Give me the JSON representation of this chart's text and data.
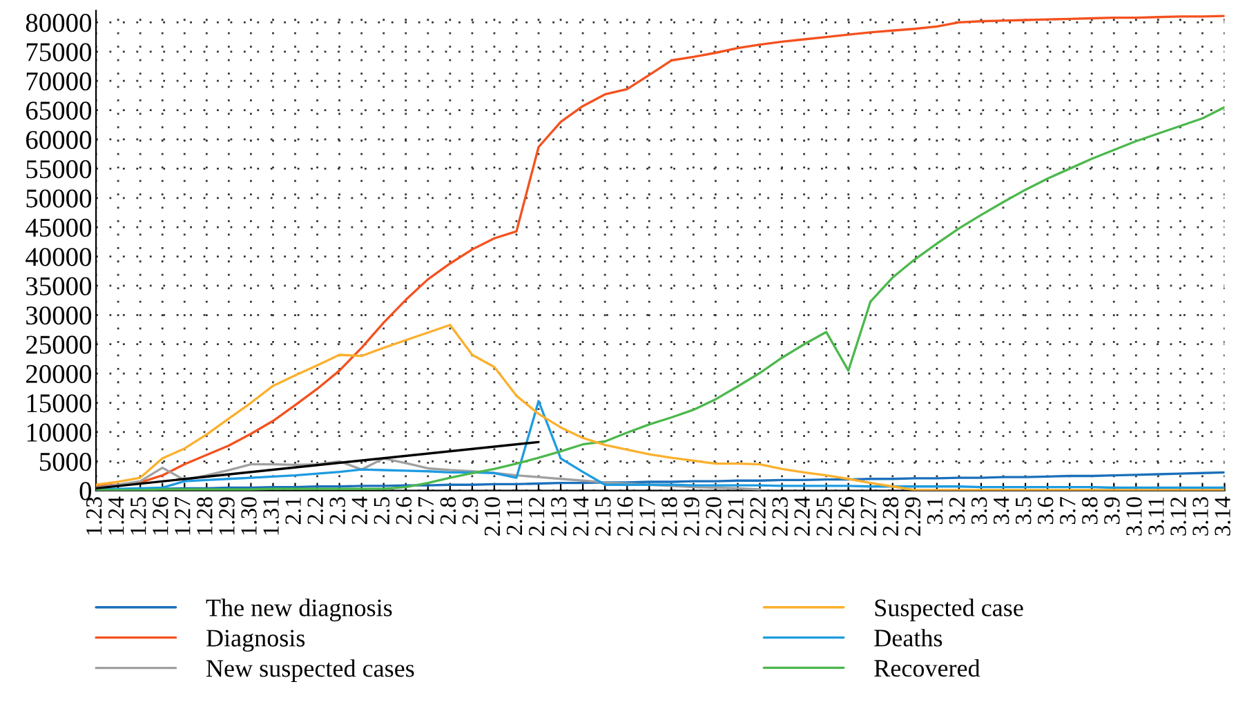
{
  "chart_data": {
    "type": "line",
    "categories": [
      "1.23",
      "1.24",
      "1.25",
      "1.26",
      "1.27",
      "1.28",
      "1.29",
      "1.30",
      "1.31",
      "2.1",
      "2.2",
      "2.3",
      "2.4",
      "2.5",
      "2.6",
      "2.7",
      "2.8",
      "2.9",
      "2.10",
      "2.11",
      "2.12",
      "2.13",
      "2.14",
      "2.15",
      "2.16",
      "2.17",
      "2.18",
      "2.19",
      "2.20",
      "2.21",
      "2.22",
      "2.23",
      "2.24",
      "2.25",
      "2.26",
      "2.27",
      "2.28",
      "2.29",
      "3.1",
      "3.2",
      "3.3",
      "3.4",
      "3.5",
      "3.6",
      "3.7",
      "3.8",
      "3.9",
      "3.10",
      "3.11",
      "3.12",
      "3.13",
      "3.14"
    ],
    "series": [
      {
        "name": "The new diagnosis",
        "color": "#1b6fba",
        "values": [
          200,
          200,
          300,
          300,
          400,
          400,
          500,
          500,
          600,
          600,
          700,
          700,
          800,
          800,
          900,
          900,
          1000,
          1000,
          1100,
          1100,
          1200,
          1300,
          1300,
          1400,
          1400,
          1500,
          1500,
          1600,
          1600,
          1700,
          1700,
          1800,
          1800,
          1900,
          1900,
          2000,
          2000,
          2100,
          2100,
          2200,
          2200,
          2300,
          2300,
          2400,
          2500,
          2500,
          2600,
          2700,
          2800,
          2900,
          3000,
          3100
        ]
      },
      {
        "name": "Diagnosis",
        "color": "#f4511e",
        "values": [
          800,
          1000,
          1400,
          2600,
          4500,
          6100,
          7700,
          9700,
          11900,
          14600,
          17400,
          20500,
          24400,
          28700,
          32600,
          36100,
          38800,
          41200,
          43100,
          44300,
          58700,
          63000,
          65700,
          67700,
          68600,
          71000,
          73500,
          74100,
          74800,
          75600,
          76200,
          76700,
          77100,
          77500,
          77900,
          78300,
          78600,
          78900,
          79300,
          80000,
          80200,
          80300,
          80400,
          80500,
          80600,
          80700,
          80800,
          80800,
          80900,
          81000,
          81000,
          81100
        ]
      },
      {
        "name": "New suspected cases",
        "color": "#a0a0a0",
        "values": [
          500,
          1000,
          1600,
          3900,
          1800,
          2600,
          3500,
          4500,
          4500,
          4400,
          4500,
          5000,
          3600,
          5500,
          4700,
          3800,
          3500,
          3300,
          3000,
          2600,
          2300,
          2000,
          1700,
          1400,
          1200,
          1000,
          800,
          600,
          500,
          400,
          200,
          null,
          null,
          null,
          null,
          null,
          null,
          null,
          null,
          null,
          null,
          null,
          null,
          null,
          null,
          null,
          null,
          null,
          null,
          null,
          null,
          null
        ]
      },
      {
        "name": "Suspected case",
        "color": "#fbb02d",
        "values": [
          1000,
          1500,
          2200,
          5500,
          7200,
          9600,
          12300,
          15000,
          17900,
          19700,
          21400,
          23200,
          23000,
          24400,
          25700,
          27000,
          28300,
          23200,
          21100,
          16200,
          13100,
          10800,
          9000,
          7800,
          7000,
          6200,
          5600,
          5100,
          4600,
          4600,
          4500,
          3700,
          3100,
          2600,
          2000,
          1300,
          700,
          100,
          100,
          100,
          100,
          100,
          100,
          100,
          100,
          100,
          100,
          100,
          100,
          100,
          100,
          100
        ]
      },
      {
        "name": "Deaths",
        "color": "#1e9be0",
        "values": [
          300,
          300,
          400,
          500,
          1600,
          1800,
          2000,
          2200,
          2400,
          2600,
          2900,
          3200,
          3600,
          3500,
          3400,
          3300,
          3100,
          3100,
          3000,
          2200,
          15300,
          5500,
          3200,
          1000,
          1000,
          1000,
          1000,
          900,
          900,
          900,
          900,
          800,
          800,
          800,
          800,
          700,
          700,
          700,
          700,
          700,
          600,
          600,
          600,
          600,
          600,
          600,
          500,
          500,
          500,
          500,
          500,
          500
        ]
      },
      {
        "name": "Recovered",
        "color": "#4cb84c",
        "values": [
          100,
          100,
          100,
          200,
          200,
          200,
          200,
          200,
          300,
          300,
          300,
          300,
          300,
          300,
          600,
          1300,
          2200,
          3000,
          3700,
          4600,
          5600,
          6700,
          7900,
          8400,
          9900,
          11300,
          12500,
          13800,
          15600,
          17800,
          20100,
          22700,
          25000,
          27100,
          20500,
          32300,
          36400,
          39500,
          42200,
          44800,
          47100,
          49300,
          51400,
          53300,
          55000,
          56700,
          58200,
          59700,
          61000,
          62300,
          63600,
          65500
        ]
      },
      {
        "color": "#000000",
        "values": [
          400,
          null,
          null,
          null,
          null,
          null,
          null,
          null,
          null,
          null,
          null,
          null,
          null,
          null,
          null,
          null,
          null,
          null,
          null,
          null,
          8300,
          null,
          null,
          null,
          null,
          null,
          null,
          null,
          null,
          null,
          null,
          null,
          null,
          null,
          null,
          null,
          null,
          null,
          null,
          null,
          null,
          null,
          null,
          null,
          null,
          null,
          null,
          null,
          null,
          null,
          null,
          null
        ]
      }
    ],
    "ylim": [
      0,
      82000
    ],
    "yticks": [
      0,
      5000,
      10000,
      15000,
      20000,
      25000,
      30000,
      35000,
      40000,
      45000,
      50000,
      55000,
      60000,
      65000,
      70000,
      75000,
      80000
    ],
    "grid": true,
    "legend": "bottom"
  }
}
